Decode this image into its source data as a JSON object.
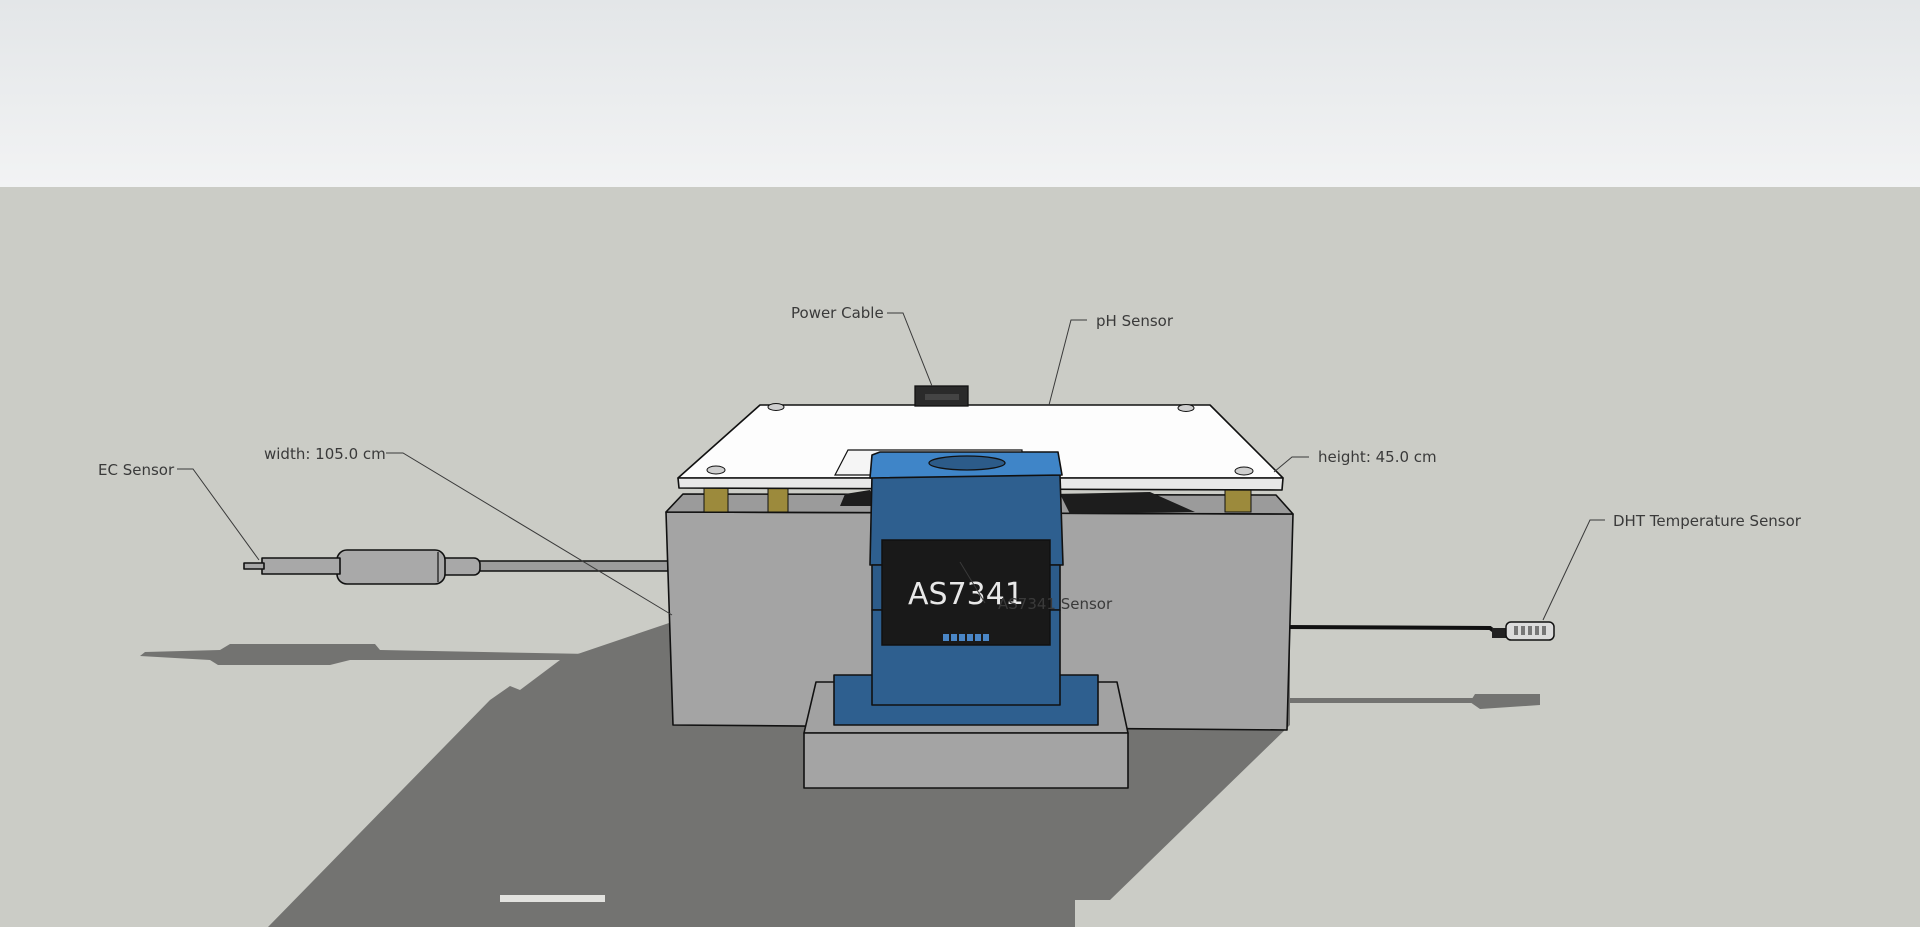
{
  "scene": {
    "sky_top": "#e3e6e8",
    "sky_bottom": "#f1f2f3",
    "ground": "#cbccc6",
    "shadow": "#737371"
  },
  "labels": {
    "power_cable": "Power Cable",
    "ph_sensor": "pH Sensor",
    "width": "width: 105.0 cm",
    "ec_sensor": "EC Sensor",
    "height": "height: 45.0 cm",
    "dht_sensor": "DHT Temperature Sensor",
    "as7341_sensor": "AS7341 Sensor"
  },
  "module": {
    "chip_text": "AS7341",
    "body_color": "#2e5f8f",
    "top_color": "#3f85c8"
  }
}
